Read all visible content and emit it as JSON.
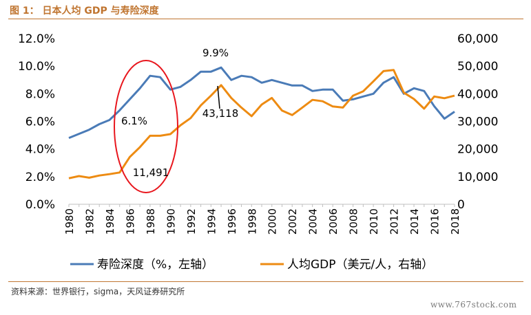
{
  "figure_title": "图 1： 日本人均 GDP 与寿险深度",
  "source_note": "资料来源：世界银行，sigma，天风证券研究所",
  "watermark": "www.767stock.com",
  "colors": {
    "series_blue": "#4a7bb7",
    "series_orange": "#ed8b12",
    "highlight_ellipse": "#e8161d",
    "accent": "#c07530"
  },
  "chart_data": {
    "type": "line",
    "x": [
      1980,
      1981,
      1982,
      1983,
      1984,
      1985,
      1986,
      1987,
      1988,
      1989,
      1990,
      1991,
      1992,
      1993,
      1994,
      1995,
      1996,
      1997,
      1998,
      1999,
      2000,
      2001,
      2002,
      2003,
      2004,
      2005,
      2006,
      2007,
      2008,
      2009,
      2010,
      2011,
      2012,
      2013,
      2014,
      2015,
      2016,
      2017,
      2018
    ],
    "x_tick_labels": [
      "1980",
      "1982",
      "1984",
      "1986",
      "1988",
      "1990",
      "1992",
      "1994",
      "1996",
      "1998",
      "2000",
      "2002",
      "2004",
      "2006",
      "2008",
      "2010",
      "2012",
      "2014",
      "2016",
      "2018"
    ],
    "y_left": {
      "min": 0,
      "max": 12,
      "tick_labels": [
        "0.0%",
        "2.0%",
        "4.0%",
        "6.0%",
        "8.0%",
        "10.0%",
        "12.0%"
      ]
    },
    "y_right": {
      "min": 0,
      "max": 60000,
      "tick_labels": [
        "0",
        "10,000",
        "20,000",
        "30,000",
        "40,000",
        "50,000",
        "60,000"
      ]
    },
    "series": [
      {
        "name": "寿险深度（%，左轴）",
        "axis": "left",
        "values": [
          4.8,
          5.1,
          5.4,
          5.8,
          6.1,
          6.8,
          7.6,
          8.4,
          9.3,
          9.2,
          8.3,
          8.5,
          9.0,
          9.6,
          9.6,
          9.9,
          9.0,
          9.3,
          9.2,
          8.8,
          9.0,
          8.8,
          8.6,
          8.6,
          8.2,
          8.3,
          8.3,
          7.5,
          7.6,
          7.8,
          8.0,
          8.8,
          9.2,
          8.0,
          8.4,
          8.2,
          7.1,
          6.2,
          6.7
        ]
      },
      {
        "name": "人均GDP（美元/人，右轴）",
        "axis": "right",
        "values": [
          9400,
          10200,
          9600,
          10400,
          10900,
          11491,
          17100,
          20700,
          24800,
          24800,
          25400,
          28600,
          31200,
          35800,
          39300,
          43118,
          38500,
          35000,
          31900,
          36100,
          38500,
          33900,
          32300,
          35000,
          37800,
          37300,
          35400,
          35000,
          39300,
          40900,
          44500,
          48200,
          48600,
          40400,
          38100,
          34600,
          39000,
          38400,
          39300
        ]
      }
    ],
    "annotations": [
      "9.9%",
      "6.1%",
      "43,118",
      "11,491"
    ],
    "grid": false,
    "legend": "bottom"
  }
}
